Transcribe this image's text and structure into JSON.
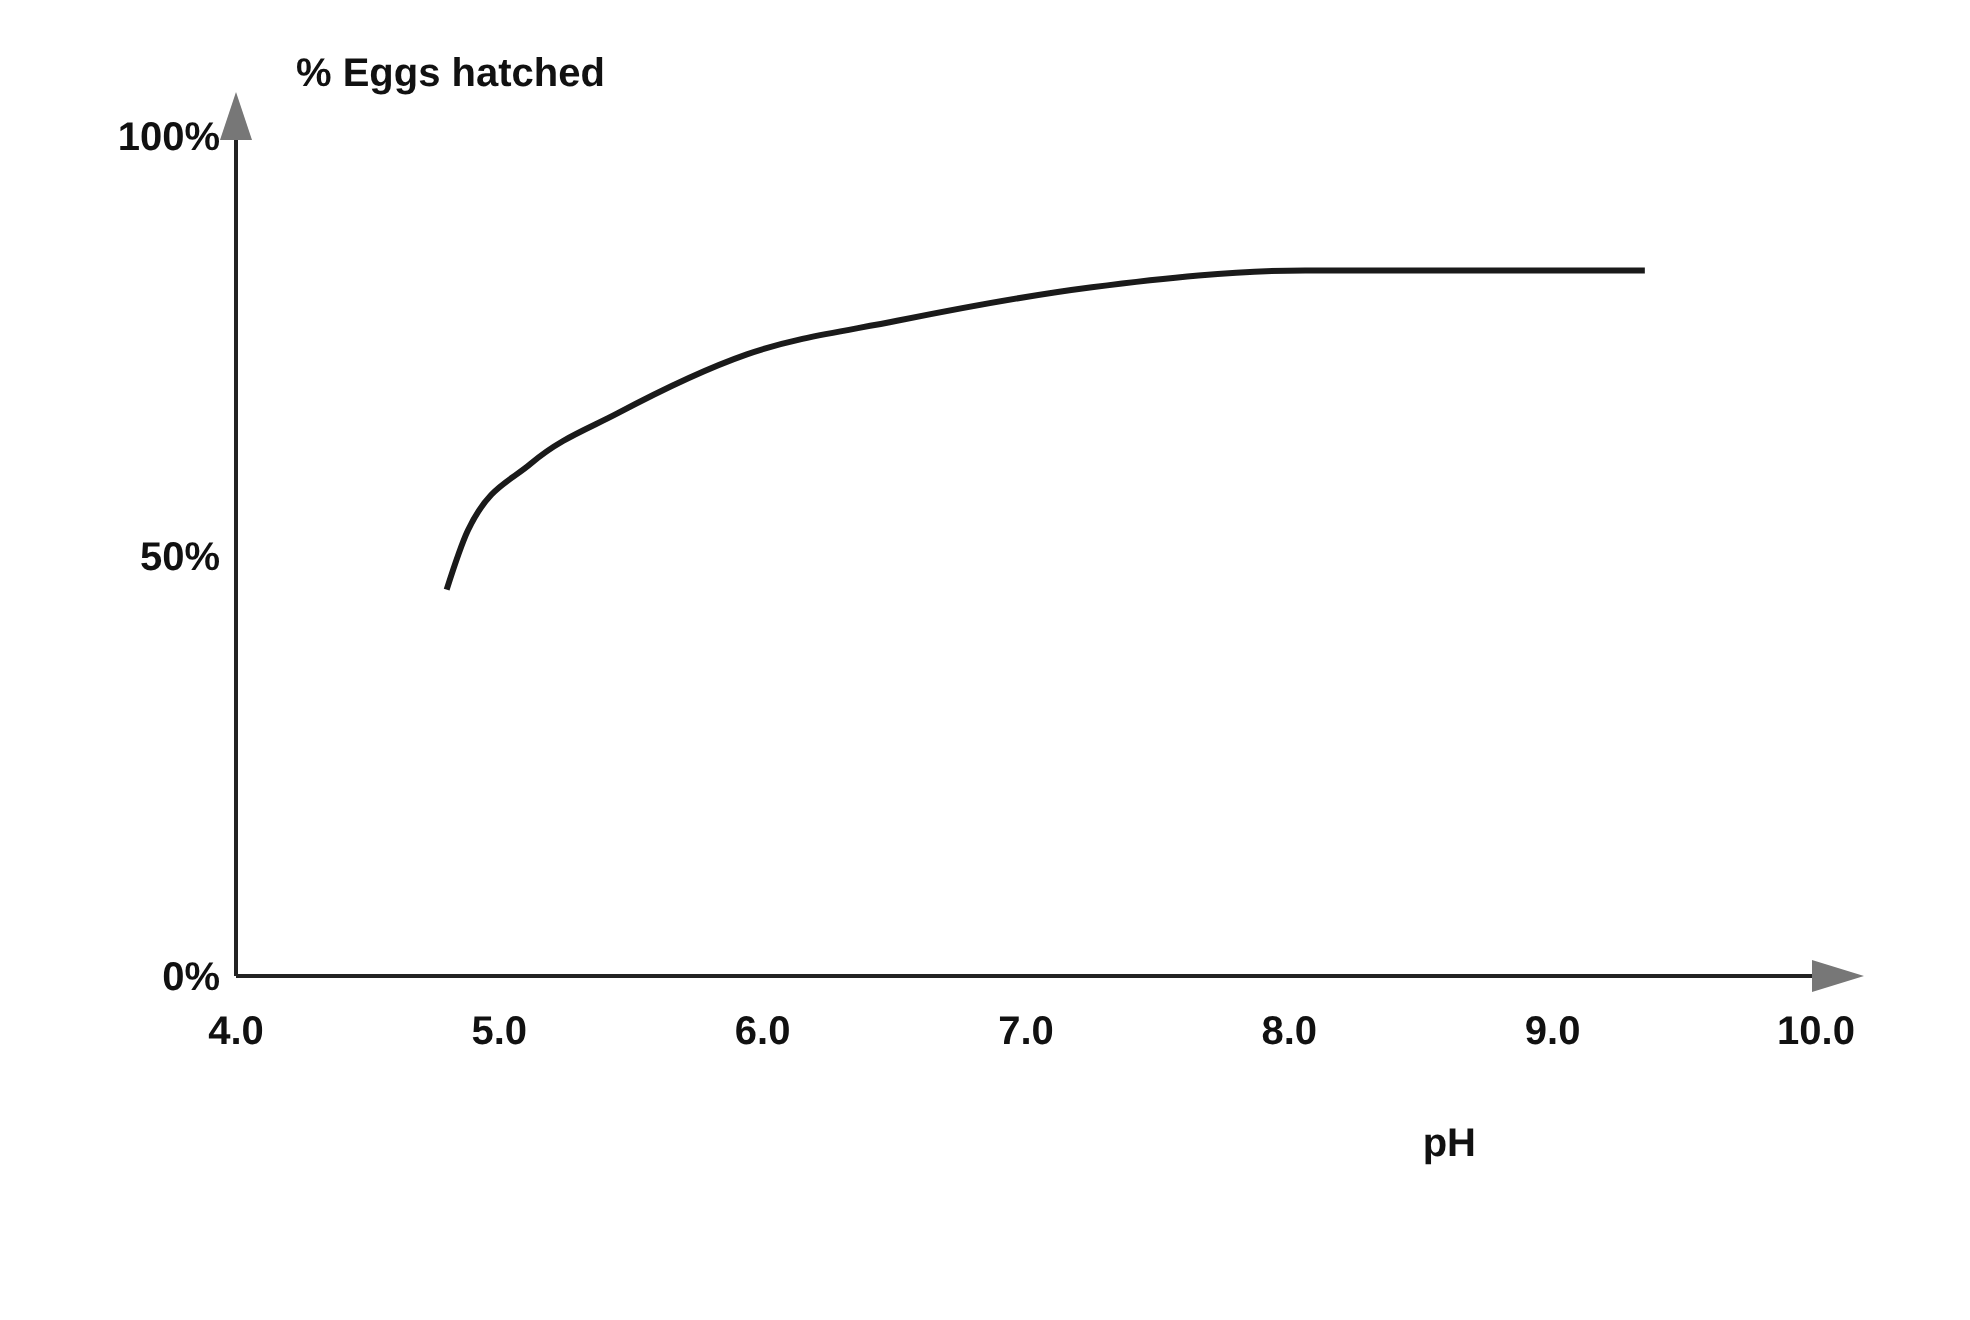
{
  "chart_data": {
    "type": "line",
    "xlabel": "pH",
    "ylabel": "% Eggs hatched",
    "xlim": [
      4,
      10
    ],
    "xticks": [
      {
        "value": 4,
        "label": "4.0"
      },
      {
        "value": 5,
        "label": "5.0"
      },
      {
        "value": 6,
        "label": "6.0"
      },
      {
        "value": 7,
        "label": "7.0"
      },
      {
        "value": 8,
        "label": "8.0"
      },
      {
        "value": 9,
        "label": "9.0"
      },
      {
        "value": 10,
        "label": "10.0"
      }
    ],
    "ylim": [
      0,
      100
    ],
    "yticks": [
      {
        "value": 0,
        "label": "0%"
      },
      {
        "value": 50,
        "label": "50%"
      },
      {
        "value": 100,
        "label": "100%"
      }
    ],
    "x": [
      4.8,
      4.88,
      5.12,
      5.45,
      5.94,
      6.51,
      7.25,
      8.06,
      8.71,
      9.35
    ],
    "series": [
      {
        "color": "#1a1a1a",
        "values": [
          46,
          53,
          61,
          67,
          74,
          78,
          82,
          84,
          84,
          84
        ]
      }
    ],
    "grid": false,
    "legend": false,
    "marker": "none",
    "line_style": "solid"
  }
}
